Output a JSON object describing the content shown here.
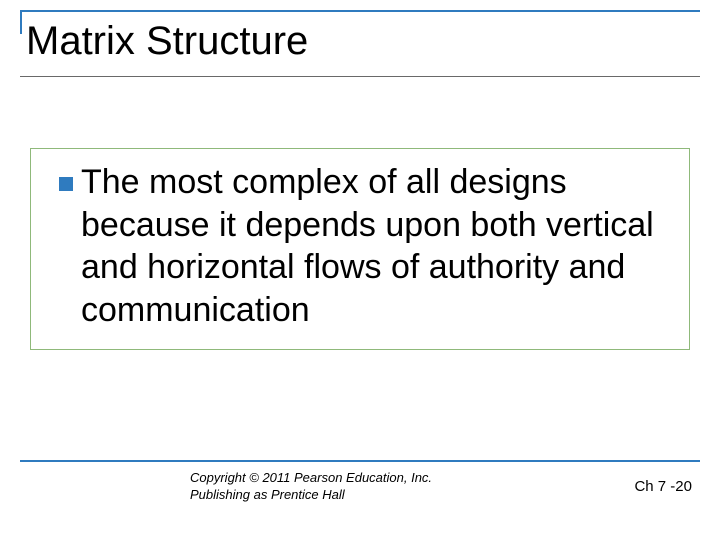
{
  "colors": {
    "accent": "#2f7bbf",
    "underline": "#696969",
    "box_border": "#8fb97a",
    "bullet": "#2f7bbf"
  },
  "title": "Matrix Structure",
  "body": {
    "text": "The most complex of all designs because it depends upon both vertical and horizontal flows of authority and communication"
  },
  "footer": {
    "copyright_line1": "Copyright © 2011 Pearson Education, Inc.",
    "copyright_line2": "Publishing as Prentice Hall",
    "page": "Ch 7 -20"
  }
}
